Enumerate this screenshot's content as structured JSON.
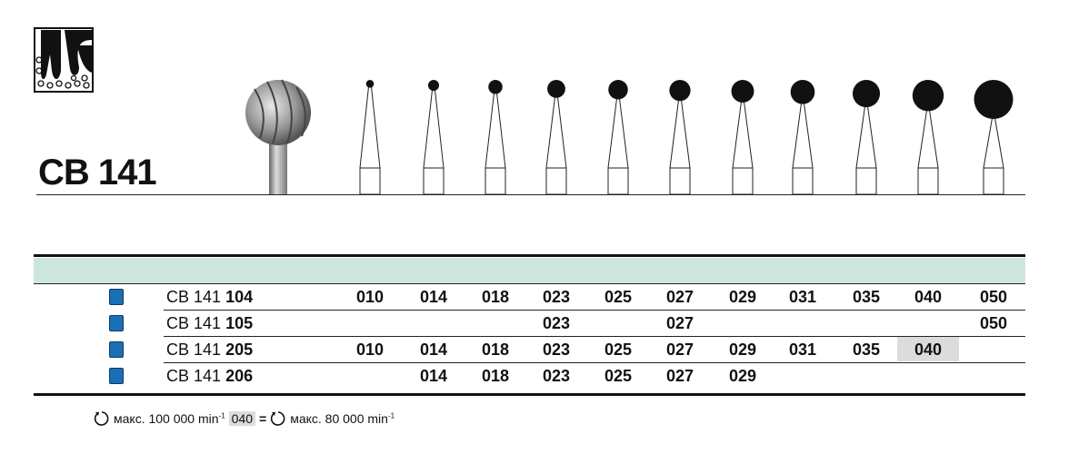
{
  "product": {
    "title": "CB 141"
  },
  "sizes": [
    "010",
    "014",
    "018",
    "023",
    "025",
    "027",
    "029",
    "031",
    "035",
    "040",
    "050"
  ],
  "colors": {
    "band": "#cde6dc",
    "marker": "#1a6fb5",
    "highlight": "#dcdcdc"
  },
  "rows": [
    {
      "prefix": "CB 141",
      "suffix": "104",
      "cells": [
        "010",
        "014",
        "018",
        "023",
        "025",
        "027",
        "029",
        "031",
        "035",
        "040",
        "050"
      ]
    },
    {
      "prefix": "CB 141",
      "suffix": "105",
      "cells": [
        "",
        "",
        "",
        "023",
        "",
        "027",
        "",
        "",
        "",
        "",
        "050"
      ]
    },
    {
      "prefix": "CB 141",
      "suffix": "205",
      "cells": [
        "010",
        "014",
        "018",
        "023",
        "025",
        "027",
        "029",
        "031",
        "035",
        "040",
        ""
      ],
      "highlight": "040"
    },
    {
      "prefix": "CB 141",
      "suffix": "206",
      "cells": [
        "",
        "014",
        "018",
        "023",
        "025",
        "027",
        "029",
        "",
        "",
        "",
        ""
      ]
    }
  ],
  "footer": {
    "speed1": "макс. 100 000 min",
    "exp": "-1",
    "highlight": "040",
    "eq": "=",
    "speed2": "макс. 80 000 min"
  }
}
